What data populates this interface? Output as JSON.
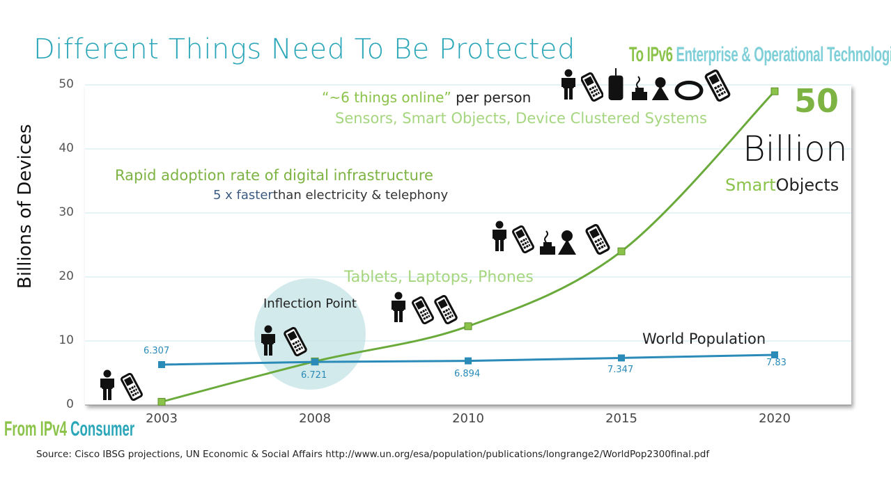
{
  "title": "Different Things Need To Be Protected",
  "top_right_label": {
    "part1": "To IPv6",
    "part2": "Enterprise & Operational Technologies"
  },
  "bottom_left_label": {
    "part1": "From IPv4",
    "part2": "Consumer"
  },
  "annotations": {
    "things_online_quoted": "“~6 things online”",
    "things_online_rest": "per person",
    "sensors": "Sensors, Smart Objects, Device Clustered Systems",
    "rapid_adoption": "Rapid adoption rate of digital infrastructure",
    "faster_hl": "5 x faster",
    "faster_rest": "than electricity & telephony",
    "big_number": "50",
    "billion": "Billion",
    "smart_part1": "Smart",
    "smart_part2": "Objects",
    "tablets": "Tablets, Laptops, Phones",
    "inflection": "Inflection Point",
    "world_population": "World Population"
  },
  "source": "Source: Cisco IBSG projections, UN Economic & Social Affairs http://www.un.org/esa/population/publications/longrange2/WorldPop2300final.pdf",
  "icons": [
    "person-icon",
    "phone-icon",
    "device-icon",
    "smart-object-icon",
    "camera-icon",
    "wearable-icon"
  ],
  "colors": {
    "devices": "#6aaa3a",
    "population": "#2a8ab8",
    "title": "#2aa6b8",
    "highlight": "#a5d67f"
  },
  "chart_data": {
    "type": "line",
    "title": "Different Things Need To Be Protected",
    "xlabel": "",
    "ylabel": "Billions of Devices",
    "categories": [
      "2003",
      "2008",
      "2010",
      "2015",
      "2020"
    ],
    "ylim": [
      0,
      50
    ],
    "yticks": [
      "0",
      "10",
      "20",
      "30",
      "40",
      "50"
    ],
    "grid": true,
    "series": [
      {
        "name": "",
        "values": [
          0.5,
          6.8,
          12.3,
          24,
          49
        ]
      },
      {
        "name": "World Population",
        "values": [
          6.307,
          6.721,
          6.894,
          7.347,
          7.83
        ],
        "labels": [
          "6.307",
          "6.721",
          "6.894",
          "7.347",
          "7.83"
        ]
      }
    ]
  }
}
